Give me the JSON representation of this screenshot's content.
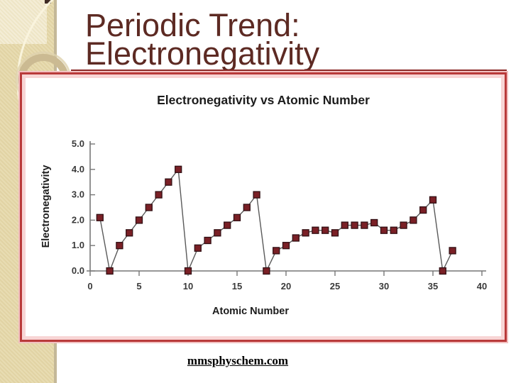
{
  "slide": {
    "title": {
      "line1": "Periodic Trend:",
      "line2": "Electronegativity"
    },
    "footer_text": "mmsphyschem.com"
  },
  "colors": {
    "title_text": "#5d2a23",
    "title_rule": "#8c2a28",
    "box_border": "#b93a3a",
    "box_glow": "#f8d5d5",
    "band": "#e5d8ab",
    "band_light": "#f2ebd2",
    "ring": "#cbba92",
    "arc": "#faf4de",
    "marker_fill": "#7a2026",
    "marker_edge": "#321014",
    "series_line": "#5a5a5a",
    "axis_line": "#777777",
    "tick_label": "#3a3a3a",
    "chart_text": "#1c1c1c"
  },
  "chart_data": {
    "type": "line",
    "title": "Electronegativity vs Atomic Number",
    "xlabel": "Atomic Number",
    "ylabel": "Electronegativity",
    "xlim": [
      0,
      40
    ],
    "ylim": [
      0.0,
      5.0
    ],
    "x_ticks": [
      "0",
      "5",
      "10",
      "15",
      "20",
      "25",
      "30",
      "35",
      "40"
    ],
    "y_ticks": [
      "0.0",
      "1.0",
      "2.0",
      "3.0",
      "4.0",
      "5.0"
    ],
    "grid": false,
    "legend": false,
    "marker": "square",
    "x": [
      1,
      2,
      3,
      4,
      5,
      6,
      7,
      8,
      9,
      10,
      11,
      12,
      13,
      14,
      15,
      16,
      17,
      18,
      19,
      20,
      21,
      22,
      23,
      24,
      25,
      26,
      27,
      28,
      29,
      30,
      31,
      32,
      33,
      34,
      35,
      36,
      37
    ],
    "y": [
      2.1,
      0,
      1.0,
      1.5,
      2.0,
      2.5,
      3.0,
      3.5,
      4.0,
      0,
      0.9,
      1.2,
      1.5,
      1.8,
      2.1,
      2.5,
      3.0,
      0,
      0.8,
      1.0,
      1.3,
      1.5,
      1.6,
      1.6,
      1.5,
      1.8,
      1.8,
      1.8,
      1.9,
      1.6,
      1.6,
      1.8,
      2.0,
      2.4,
      2.8,
      0,
      0.8
    ]
  }
}
